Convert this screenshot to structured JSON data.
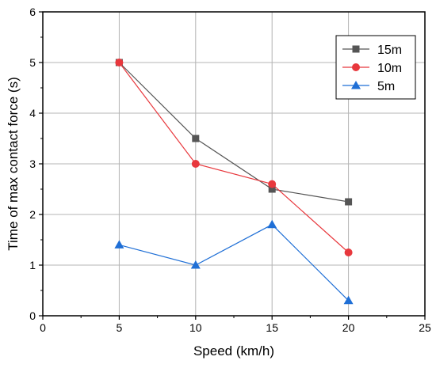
{
  "chart_data": {
    "type": "line",
    "xlabel": "Speed (km/h)",
    "ylabel": "Time of max contact force (s)",
    "xlim": [
      0,
      25
    ],
    "ylim": [
      0,
      6
    ],
    "xticks": [
      0,
      5,
      10,
      15,
      20,
      25
    ],
    "yticks": [
      0,
      1,
      2,
      3,
      4,
      5,
      6
    ],
    "grid": true,
    "legend_position": "top-right",
    "series": [
      {
        "name": "15m",
        "color": "#555555",
        "marker": "square",
        "x": [
          5,
          10,
          15,
          20
        ],
        "y": [
          5.0,
          3.5,
          2.5,
          2.25
        ]
      },
      {
        "name": "10m",
        "color": "#e8383d",
        "marker": "circle",
        "x": [
          5,
          10,
          15,
          20
        ],
        "y": [
          5.0,
          3.0,
          2.6,
          1.25
        ]
      },
      {
        "name": "5m",
        "color": "#1f6fd6",
        "marker": "triangle",
        "x": [
          5,
          10,
          15,
          20
        ],
        "y": [
          1.4,
          1.0,
          1.8,
          0.3
        ]
      }
    ]
  }
}
